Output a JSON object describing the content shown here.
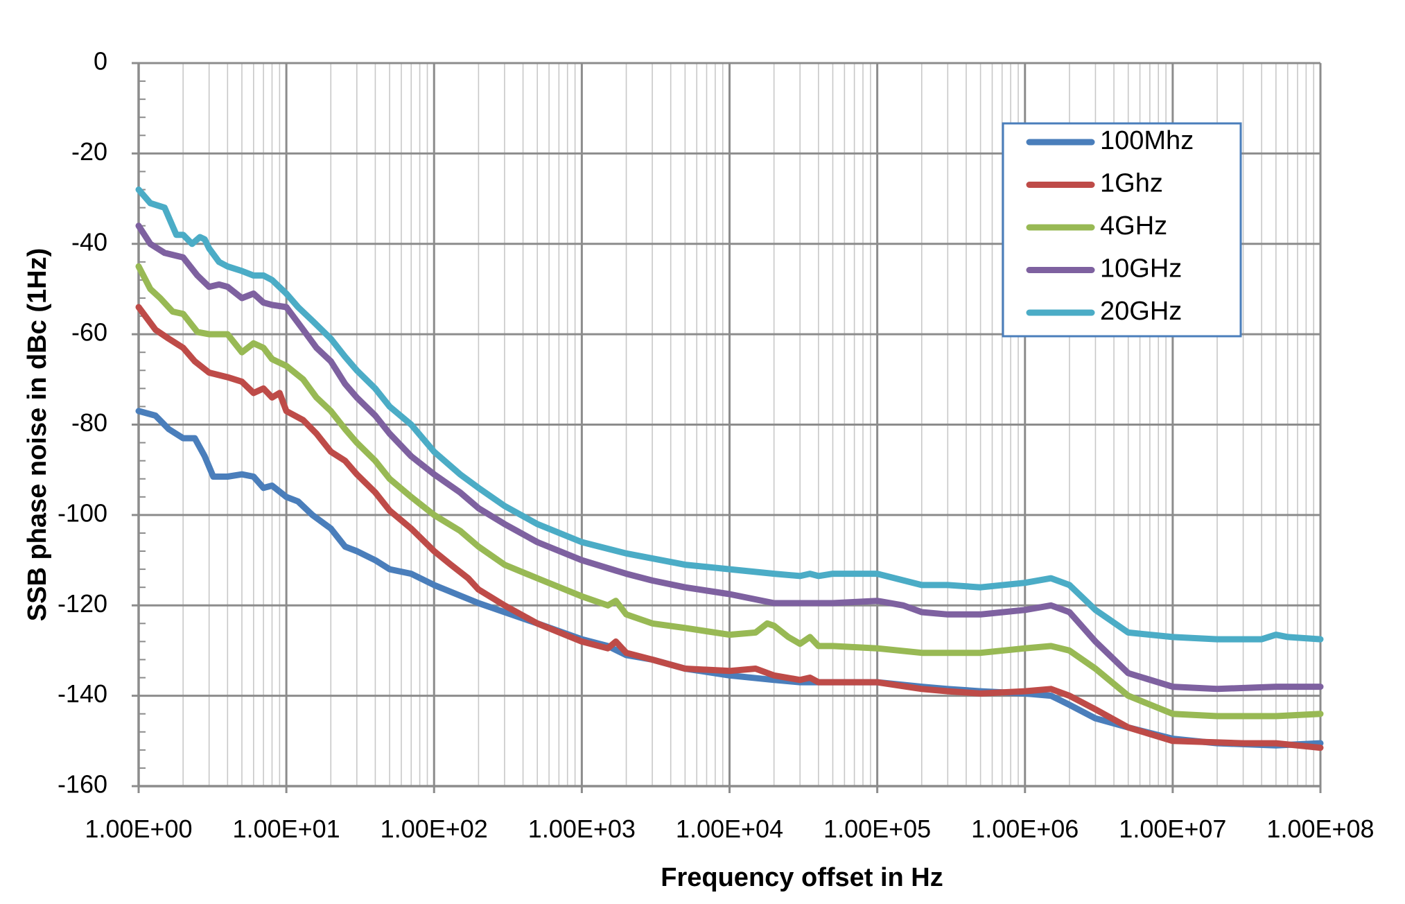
{
  "chart_data": {
    "type": "line",
    "title": "",
    "xlabel": "Frequency offset in Hz",
    "ylabel": "SSB phase noise in dBc   (1Hz)",
    "x_scale": "log",
    "xlim": [
      1,
      100000000
    ],
    "ylim": [
      -160,
      0
    ],
    "grid": true,
    "legend_position": "top-right",
    "x_ticks": [
      {
        "value": 1,
        "label": "1.00E+00"
      },
      {
        "value": 10,
        "label": "1.00E+01"
      },
      {
        "value": 100,
        "label": "1.00E+02"
      },
      {
        "value": 1000,
        "label": "1.00E+03"
      },
      {
        "value": 10000,
        "label": "1.00E+04"
      },
      {
        "value": 100000,
        "label": "1.00E+05"
      },
      {
        "value": 1000000,
        "label": "1.00E+06"
      },
      {
        "value": 10000000,
        "label": "1.00E+07"
      },
      {
        "value": 100000000,
        "label": "1.00E+08"
      }
    ],
    "y_ticks": [
      {
        "value": 0,
        "label": "0"
      },
      {
        "value": -20,
        "label": "-20"
      },
      {
        "value": -40,
        "label": "-40"
      },
      {
        "value": -60,
        "label": "-60"
      },
      {
        "value": -80,
        "label": "-80"
      },
      {
        "value": -100,
        "label": "-100"
      },
      {
        "value": -120,
        "label": "-120"
      },
      {
        "value": -140,
        "label": "-140"
      },
      {
        "value": -160,
        "label": "-160"
      }
    ],
    "series": [
      {
        "name": "100Mhz",
        "color": "#4a7ebb",
        "x": [
          1,
          1.3,
          1.6,
          2,
          2.4,
          2.8,
          3.2,
          4,
          5,
          6,
          7,
          8,
          10,
          12,
          15,
          20,
          25,
          30,
          40,
          50,
          70,
          100,
          200,
          300,
          500,
          1000,
          1500,
          2000,
          3000,
          5000,
          10000,
          20000,
          30000,
          50000,
          100000,
          200000,
          300000,
          500000,
          1000000,
          1500000,
          2000000,
          3000000,
          5000000,
          10000000,
          20000000,
          50000000,
          100000000
        ],
        "values": [
          -77,
          -78,
          -81,
          -83,
          -83,
          -87,
          -91.5,
          -91.5,
          -91,
          -91.5,
          -94,
          -93.5,
          -96,
          -97,
          -100,
          -103,
          -107,
          -108,
          -110,
          -112,
          -113,
          -115.5,
          -119.5,
          -121.5,
          -124,
          -127.5,
          -129,
          -131,
          -132,
          -134,
          -135.5,
          -136.5,
          -137,
          -137,
          -137,
          -138,
          -138.5,
          -139,
          -139.5,
          -140,
          -142,
          -145,
          -147,
          -149.5,
          -150.5,
          -151,
          -150.5
        ]
      },
      {
        "name": "1Ghz",
        "color": "#be4b48",
        "x": [
          1,
          1.3,
          1.6,
          2,
          2.4,
          3,
          4,
          5,
          6,
          7,
          8,
          9,
          10,
          13,
          16,
          20,
          25,
          30,
          40,
          50,
          70,
          100,
          130,
          170,
          200,
          300,
          500,
          1000,
          1500,
          1700,
          2000,
          3000,
          5000,
          10000,
          15000,
          20000,
          30000,
          35000,
          40000,
          50000,
          100000,
          200000,
          300000,
          500000,
          1000000,
          1500000,
          2000000,
          3000000,
          5000000,
          10000000,
          30000000,
          50000000,
          70000000,
          100000000
        ],
        "values": [
          -54,
          -59,
          -61,
          -63,
          -66,
          -68.5,
          -69.5,
          -70.5,
          -73,
          -72,
          -74,
          -73,
          -77,
          -79,
          -82,
          -86,
          -88,
          -91,
          -95,
          -99,
          -103,
          -108,
          -111,
          -114,
          -116.5,
          -120,
          -124,
          -128,
          -129.5,
          -128,
          -130.5,
          -132,
          -134,
          -134.5,
          -134,
          -135.5,
          -136.5,
          -136,
          -137,
          -137,
          -137,
          -138.5,
          -139,
          -139.5,
          -139,
          -138.5,
          -140,
          -143,
          -147,
          -150,
          -150.5,
          -150.5,
          -151,
          -151.5
        ]
      },
      {
        "name": "4GHz",
        "color": "#98b954",
        "x": [
          1,
          1.2,
          1.4,
          1.7,
          2,
          2.5,
          3,
          4,
          5,
          6,
          7,
          8,
          10,
          13,
          16,
          20,
          25,
          30,
          40,
          50,
          70,
          100,
          150,
          200,
          300,
          500,
          1000,
          1500,
          1700,
          2000,
          3000,
          5000,
          10000,
          15000,
          18000,
          20000,
          25000,
          30000,
          35000,
          40000,
          50000,
          100000,
          200000,
          300000,
          500000,
          1000000,
          1500000,
          2000000,
          3000000,
          5000000,
          10000000,
          20000000,
          50000000,
          100000000
        ],
        "values": [
          -45,
          -50,
          -52,
          -55,
          -55.5,
          -59.5,
          -60,
          -60,
          -64,
          -62,
          -63,
          -65.5,
          -67,
          -70,
          -74,
          -77,
          -81,
          -84,
          -88,
          -92,
          -96,
          -100,
          -103.5,
          -107,
          -111,
          -114,
          -118,
          -120,
          -119,
          -122,
          -124,
          -125,
          -126.5,
          -126,
          -124,
          -124.5,
          -127,
          -128.5,
          -127,
          -129,
          -129,
          -129.5,
          -130.5,
          -130.5,
          -130.5,
          -129.5,
          -129,
          -130,
          -134,
          -140,
          -144,
          -144.5,
          -144.5,
          -144
        ]
      },
      {
        "name": "10GHz",
        "color": "#7e61a0",
        "x": [
          1,
          1.2,
          1.5,
          2,
          2.5,
          3,
          3.5,
          4,
          5,
          6,
          7,
          8,
          10,
          13,
          16,
          20,
          25,
          30,
          40,
          50,
          70,
          100,
          150,
          200,
          300,
          500,
          1000,
          2000,
          3000,
          5000,
          10000,
          20000,
          30000,
          50000,
          100000,
          150000,
          200000,
          300000,
          500000,
          1000000,
          1500000,
          2000000,
          3000000,
          5000000,
          10000000,
          20000000,
          50000000,
          100000000
        ],
        "values": [
          -36,
          -40,
          -42,
          -43,
          -47,
          -49.5,
          -49,
          -49.5,
          -52,
          -51,
          -53,
          -53.5,
          -54,
          -59,
          -63,
          -66,
          -71,
          -74,
          -78,
          -82,
          -87,
          -91,
          -95,
          -98.5,
          -102,
          -106,
          -110,
          -113,
          -114.5,
          -116,
          -117.5,
          -119.5,
          -119.5,
          -119.5,
          -119,
          -120,
          -121.5,
          -122,
          -122,
          -121,
          -120,
          -121.5,
          -128,
          -135,
          -138,
          -138.5,
          -138,
          -138
        ]
      },
      {
        "name": "20GHz",
        "color": "#4bacc6",
        "x": [
          1,
          1.2,
          1.5,
          1.8,
          2,
          2.3,
          2.6,
          2.8,
          3,
          3.5,
          4,
          5,
          6,
          7,
          8,
          10,
          12,
          15,
          20,
          25,
          30,
          40,
          50,
          70,
          100,
          150,
          200,
          300,
          500,
          1000,
          2000,
          5000,
          10000,
          20000,
          30000,
          35000,
          40000,
          50000,
          100000,
          200000,
          300000,
          500000,
          1000000,
          1500000,
          2000000,
          3000000,
          5000000,
          10000000,
          20000000,
          40000000,
          50000000,
          60000000,
          100000000
        ],
        "values": [
          -28,
          -31,
          -32,
          -38,
          -38,
          -40,
          -38.5,
          -39,
          -41,
          -44,
          -45,
          -46,
          -47,
          -47,
          -48,
          -51,
          -54,
          -57,
          -61,
          -65,
          -68,
          -72,
          -76,
          -80,
          -86,
          -91,
          -94,
          -98,
          -102,
          -106,
          -108.5,
          -111,
          -112,
          -113,
          -113.5,
          -113,
          -113.5,
          -113,
          -113,
          -115.5,
          -115.5,
          -116,
          -115,
          -114,
          -115.5,
          -121,
          -126,
          -127,
          -127.5,
          -127.5,
          -126.5,
          -127,
          -127.5
        ]
      }
    ]
  }
}
